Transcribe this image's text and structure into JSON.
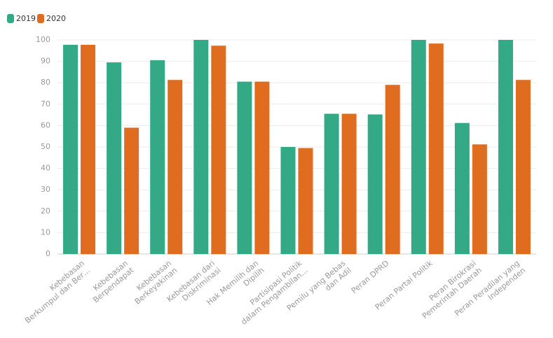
{
  "chart_data": {
    "type": "bar",
    "categories": [
      [
        "Kebebasan",
        "Berkumpul dan Ber…"
      ],
      [
        "Kebebasan",
        "Berpendapat"
      ],
      [
        "Kebebasan",
        "Berkeyakinan"
      ],
      [
        "Kebebasan dari",
        "Diskriminasi"
      ],
      [
        "Hak Memilih dan",
        "Dipilih"
      ],
      [
        "Partisipasi Politik",
        "dalam Pengambilan…"
      ],
      [
        "Pemilu yang Bebas",
        "dan Adil"
      ],
      [
        "Peran DPRD"
      ],
      [
        "Peran Partai Politik"
      ],
      [
        "Peran Birokrasi",
        "Pemerintah Daerah"
      ],
      [
        "Peran Peradilan yang",
        "Independen"
      ]
    ],
    "series": [
      {
        "name": "2019",
        "color": "#33a985",
        "values": [
          97.7,
          89.5,
          90.5,
          100,
          80.5,
          50,
          65.5,
          65.2,
          100,
          61.2,
          100
        ]
      },
      {
        "name": "2020",
        "color": "#e06c1f",
        "values": [
          97.7,
          59,
          81.3,
          97.3,
          80.5,
          49.5,
          65.5,
          79,
          98.3,
          51.2,
          81.3
        ]
      }
    ],
    "ylim": [
      0,
      100
    ],
    "yticks": [
      0,
      10,
      20,
      30,
      40,
      50,
      60,
      70,
      80,
      90,
      100
    ],
    "grid": true,
    "legend": "top-left"
  }
}
